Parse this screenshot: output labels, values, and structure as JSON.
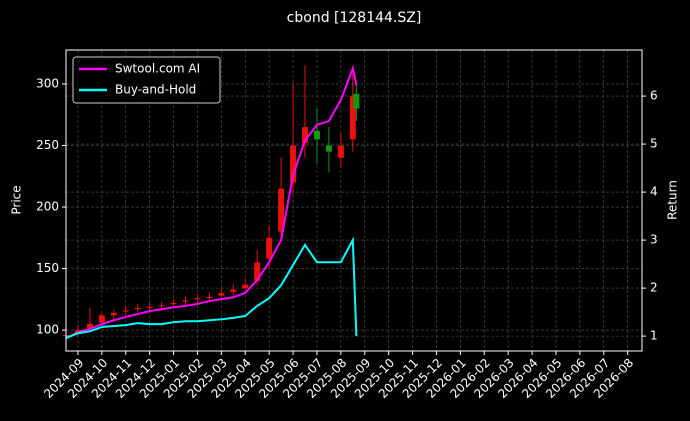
{
  "chart_data": {
    "type": "candlestick",
    "title": "cbond [128144.SZ]",
    "ylabel": "Price",
    "y2label": "Return",
    "x": [
      -0.5,
      0,
      0.5,
      1,
      1.5,
      2,
      2.5,
      3,
      3.5,
      4,
      4.5,
      5,
      5.5,
      6,
      6.5,
      7,
      7.5,
      8,
      8.5,
      9,
      9.5,
      10,
      10.5,
      11,
      11.5,
      11.65
    ],
    "candles": {
      "open": [
        95,
        97,
        101,
        106,
        112,
        115,
        117,
        118,
        120,
        121,
        123,
        125,
        126,
        128,
        131,
        134,
        140,
        158,
        180,
        220,
        252,
        262,
        250,
        240,
        255,
        292
      ],
      "high": [
        98,
        104,
        118,
        114,
        117,
        120,
        121,
        122,
        123,
        125,
        127,
        129,
        130,
        134,
        137,
        142,
        165,
        185,
        240,
        300,
        315,
        280,
        265,
        260,
        315,
        300
      ],
      "low": [
        93,
        95,
        99,
        104,
        108,
        112,
        114,
        115,
        117,
        118,
        120,
        122,
        123,
        126,
        128,
        131,
        136,
        150,
        172,
        210,
        240,
        235,
        228,
        232,
        245,
        270
      ],
      "close": [
        96,
        100,
        105,
        112,
        114,
        116,
        118,
        119,
        120,
        122,
        124,
        126,
        127,
        130,
        133,
        137,
        155,
        175,
        215,
        250,
        265,
        255,
        245,
        250,
        290,
        280
      ]
    },
    "up_color": "#e8120c",
    "down_color": "#0f9b0f",
    "series": [
      {
        "name": "Swtool.com AI",
        "color": "#ff00ff",
        "axis": "y2",
        "values": [
          0.96,
          1.08,
          1.15,
          1.25,
          1.33,
          1.4,
          1.46,
          1.52,
          1.56,
          1.6,
          1.63,
          1.67,
          1.73,
          1.77,
          1.81,
          1.9,
          2.17,
          2.54,
          3.0,
          4.35,
          5.08,
          5.4,
          5.48,
          5.92,
          6.58,
          6.23
        ]
      },
      {
        "name": "Buy-and-Hold",
        "color": "#00ffff",
        "axis": "y2",
        "values": [
          0.96,
          1.06,
          1.1,
          1.19,
          1.21,
          1.23,
          1.27,
          1.25,
          1.25,
          1.29,
          1.31,
          1.31,
          1.33,
          1.35,
          1.38,
          1.42,
          1.63,
          1.79,
          2.06,
          2.48,
          2.9,
          2.54,
          2.54,
          2.54,
          3.0,
          1.0
        ]
      }
    ],
    "xlim": [
      -0.5,
      23.6
    ],
    "xticks": [
      {
        "value": 0,
        "label": "2024-09"
      },
      {
        "value": 1,
        "label": "2024-10"
      },
      {
        "value": 2,
        "label": "2024-11"
      },
      {
        "value": 3,
        "label": "2024-12"
      },
      {
        "value": 4,
        "label": "2025-01"
      },
      {
        "value": 5,
        "label": "2025-02"
      },
      {
        "value": 6,
        "label": "2025-03"
      },
      {
        "value": 7,
        "label": "2025-04"
      },
      {
        "value": 8,
        "label": "2025-05"
      },
      {
        "value": 9,
        "label": "2025-06"
      },
      {
        "value": 10,
        "label": "2025-07"
      },
      {
        "value": 11,
        "label": "2025-08"
      },
      {
        "value": 12,
        "label": "2025-09"
      },
      {
        "value": 13,
        "label": "2025-10"
      },
      {
        "value": 14,
        "label": "2025-11"
      },
      {
        "value": 15,
        "label": "2025-12"
      },
      {
        "value": 16,
        "label": "2026-01"
      },
      {
        "value": 17,
        "label": "2026-02"
      },
      {
        "value": 18,
        "label": "2026-03"
      },
      {
        "value": 19,
        "label": "2026-04"
      },
      {
        "value": 20,
        "label": "2026-05"
      },
      {
        "value": 21,
        "label": "2026-06"
      },
      {
        "value": 22,
        "label": "2026-07"
      },
      {
        "value": 23,
        "label": "2026-08"
      }
    ],
    "ylim": [
      83,
      327.6
    ],
    "yticks": [
      100,
      150,
      200,
      250,
      300
    ],
    "y2lim": [
      0.69,
      6.96
    ],
    "y2ticks": [
      1,
      2,
      3,
      4,
      5,
      6
    ],
    "legend": "upper left",
    "grid": true
  }
}
